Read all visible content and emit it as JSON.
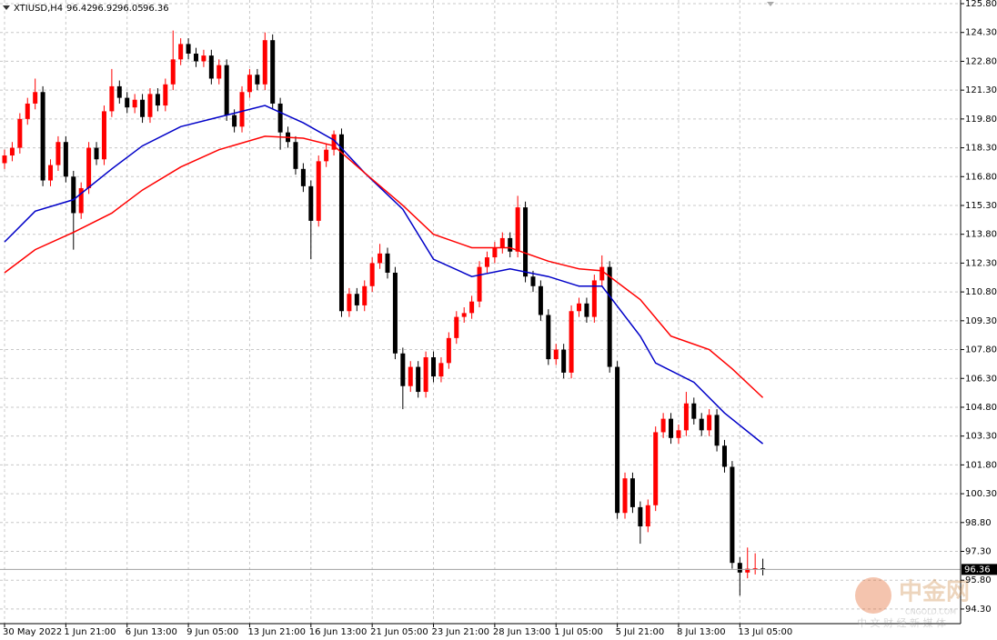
{
  "chart_data": {
    "type": "candlestick",
    "symbol": "XTIUSD,H4",
    "up_color": "#ff0000",
    "down_color": "#000000",
    "grid": true,
    "ylim": [
      93.54,
      125.99
    ],
    "yticks": [
      {
        "value": 125.8,
        "label": "125.80"
      },
      {
        "value": 124.3,
        "label": "124.30"
      },
      {
        "value": 122.8,
        "label": "122.80"
      },
      {
        "value": 121.3,
        "label": "121.30"
      },
      {
        "value": 119.8,
        "label": "119.80"
      },
      {
        "value": 118.3,
        "label": "118.30"
      },
      {
        "value": 116.8,
        "label": "116.80"
      },
      {
        "value": 115.3,
        "label": "115.30"
      },
      {
        "value": 113.8,
        "label": "113.80"
      },
      {
        "value": 112.3,
        "label": "112.30"
      },
      {
        "value": 110.8,
        "label": "110.80"
      },
      {
        "value": 109.3,
        "label": "109.30"
      },
      {
        "value": 107.8,
        "label": "107.80"
      },
      {
        "value": 106.3,
        "label": "106.30"
      },
      {
        "value": 104.8,
        "label": "104.80"
      },
      {
        "value": 103.3,
        "label": "103.30"
      },
      {
        "value": 101.8,
        "label": "101.80"
      },
      {
        "value": 100.3,
        "label": "100.30"
      },
      {
        "value": 98.8,
        "label": "98.80"
      },
      {
        "value": 97.3,
        "label": "97.30"
      },
      {
        "value": 95.8,
        "label": "95.80"
      },
      {
        "value": 94.3,
        "label": "94.30"
      }
    ],
    "xticks": [
      {
        "value": 0,
        "label": "30 May 2022"
      },
      {
        "value": 8,
        "label": "1 Jun 21:00"
      },
      {
        "value": 16,
        "label": "6 Jun 13:00"
      },
      {
        "value": 24,
        "label": "9 Jun 05:00"
      },
      {
        "value": 32,
        "label": "13 Jun 21:00"
      },
      {
        "value": 40,
        "label": "16 Jun 13:00"
      },
      {
        "value": 48,
        "label": "21 Jun 05:00"
      },
      {
        "value": 56,
        "label": "23 Jun 21:00"
      },
      {
        "value": 64,
        "label": "28 Jun 13:00"
      },
      {
        "value": 72,
        "label": "1 Jul 05:00"
      },
      {
        "value": 80,
        "label": "5 Jul 21:00"
      },
      {
        "value": 88,
        "label": "8 Jul 13:00"
      },
      {
        "value": 96,
        "label": "13 Jul 05:00"
      }
    ],
    "candles": [
      [
        117.5,
        118.2,
        117.2,
        117.9
      ],
      [
        117.9,
        118.6,
        117.6,
        118.3
      ],
      [
        118.3,
        120.1,
        118.0,
        119.8
      ],
      [
        119.8,
        120.9,
        119.5,
        120.6
      ],
      [
        120.6,
        121.9,
        120.3,
        121.2
      ],
      [
        121.2,
        121.5,
        116.3,
        116.6
      ],
      [
        116.6,
        117.7,
        116.3,
        117.4
      ],
      [
        117.4,
        118.9,
        117.1,
        118.6
      ],
      [
        118.6,
        118.9,
        116.5,
        116.8
      ],
      [
        116.8,
        117.1,
        113.0,
        114.9
      ],
      [
        114.9,
        116.5,
        114.6,
        116.2
      ],
      [
        116.2,
        118.6,
        115.9,
        118.3
      ],
      [
        118.3,
        118.6,
        117.4,
        117.7
      ],
      [
        117.7,
        120.5,
        117.4,
        120.2
      ],
      [
        120.2,
        122.4,
        119.9,
        121.5
      ],
      [
        121.5,
        121.8,
        120.6,
        120.9
      ],
      [
        120.9,
        121.2,
        120.1,
        120.4
      ],
      [
        120.4,
        121.1,
        120.1,
        120.8
      ],
      [
        120.8,
        121.1,
        119.6,
        119.9
      ],
      [
        119.9,
        121.4,
        119.6,
        121.1
      ],
      [
        121.1,
        121.4,
        120.2,
        120.5
      ],
      [
        120.5,
        121.9,
        120.2,
        121.6
      ],
      [
        121.6,
        124.4,
        121.3,
        122.9
      ],
      [
        122.9,
        124.0,
        122.6,
        123.7
      ],
      [
        123.7,
        124.0,
        122.9,
        123.2
      ],
      [
        123.2,
        123.5,
        122.5,
        122.8
      ],
      [
        122.8,
        123.4,
        122.5,
        123.1
      ],
      [
        123.1,
        123.4,
        121.6,
        121.9
      ],
      [
        121.9,
        122.9,
        121.6,
        122.6
      ],
      [
        122.6,
        122.9,
        119.7,
        120.0
      ],
      [
        120.0,
        120.3,
        119.1,
        119.4
      ],
      [
        119.4,
        121.5,
        119.1,
        121.2
      ],
      [
        121.2,
        122.4,
        120.9,
        122.1
      ],
      [
        122.1,
        122.4,
        121.3,
        121.6
      ],
      [
        121.6,
        124.3,
        121.3,
        123.9
      ],
      [
        123.9,
        124.2,
        120.3,
        120.6
      ],
      [
        120.6,
        120.9,
        118.2,
        119.1
      ],
      [
        119.1,
        119.4,
        118.3,
        118.6
      ],
      [
        118.6,
        118.9,
        116.9,
        117.2
      ],
      [
        117.2,
        117.5,
        116.0,
        116.3
      ],
      [
        116.3,
        116.6,
        112.5,
        114.5
      ],
      [
        114.5,
        117.9,
        114.2,
        117.6
      ],
      [
        117.6,
        118.5,
        117.3,
        118.2
      ],
      [
        118.2,
        119.2,
        117.9,
        119.0
      ],
      [
        119.0,
        119.3,
        109.5,
        109.8
      ],
      [
        109.8,
        111.0,
        109.5,
        110.7
      ],
      [
        110.7,
        111.0,
        109.8,
        110.1
      ],
      [
        110.1,
        111.4,
        109.8,
        111.1
      ],
      [
        111.1,
        112.6,
        110.8,
        112.3
      ],
      [
        112.3,
        113.3,
        112.0,
        112.8
      ],
      [
        112.8,
        113.1,
        111.5,
        111.8
      ],
      [
        111.8,
        112.1,
        107.3,
        107.6
      ],
      [
        107.6,
        107.9,
        104.7,
        105.9
      ],
      [
        105.9,
        107.2,
        105.6,
        106.9
      ],
      [
        106.9,
        107.2,
        105.3,
        105.6
      ],
      [
        105.6,
        107.7,
        105.3,
        107.4
      ],
      [
        107.4,
        107.7,
        106.1,
        106.4
      ],
      [
        106.4,
        107.4,
        106.1,
        107.1
      ],
      [
        107.1,
        108.7,
        106.8,
        108.4
      ],
      [
        108.4,
        109.8,
        108.1,
        109.5
      ],
      [
        109.5,
        110.0,
        109.2,
        109.7
      ],
      [
        109.7,
        110.6,
        109.4,
        110.3
      ],
      [
        110.3,
        112.4,
        110.0,
        112.1
      ],
      [
        112.1,
        112.9,
        111.8,
        112.6
      ],
      [
        112.6,
        113.4,
        112.3,
        113.1
      ],
      [
        113.1,
        113.9,
        112.8,
        113.6
      ],
      [
        113.6,
        113.9,
        112.6,
        112.9
      ],
      [
        112.9,
        115.8,
        112.6,
        115.2
      ],
      [
        115.2,
        115.5,
        111.3,
        111.6
      ],
      [
        111.6,
        111.9,
        110.8,
        111.1
      ],
      [
        111.1,
        111.4,
        109.3,
        109.6
      ],
      [
        109.6,
        109.9,
        107.0,
        107.3
      ],
      [
        107.3,
        108.1,
        107.0,
        107.8
      ],
      [
        107.8,
        108.1,
        106.3,
        106.6
      ],
      [
        106.6,
        110.1,
        106.3,
        109.8
      ],
      [
        109.8,
        110.5,
        109.5,
        110.2
      ],
      [
        110.2,
        110.5,
        109.2,
        109.5
      ],
      [
        109.5,
        111.7,
        109.2,
        111.4
      ],
      [
        111.4,
        112.7,
        111.1,
        112.1
      ],
      [
        112.1,
        112.4,
        106.6,
        106.9
      ],
      [
        106.9,
        107.2,
        99.0,
        99.3
      ],
      [
        99.3,
        101.4,
        99.0,
        101.1
      ],
      [
        101.1,
        101.4,
        99.3,
        99.6
      ],
      [
        99.6,
        99.9,
        97.7,
        98.6
      ],
      [
        98.6,
        100.0,
        98.3,
        99.7
      ],
      [
        99.7,
        103.8,
        99.4,
        103.5
      ],
      [
        103.5,
        104.5,
        103.2,
        104.2
      ],
      [
        104.2,
        104.5,
        102.9,
        103.2
      ],
      [
        103.2,
        103.9,
        102.9,
        103.6
      ],
      [
        103.6,
        105.6,
        103.3,
        105.0
      ],
      [
        105.0,
        105.3,
        103.9,
        104.2
      ],
      [
        104.2,
        104.5,
        103.3,
        103.6
      ],
      [
        103.6,
        104.7,
        103.3,
        104.4
      ],
      [
        104.4,
        104.7,
        102.5,
        102.8
      ],
      [
        102.8,
        103.1,
        101.4,
        101.7
      ],
      [
        101.7,
        102.0,
        96.4,
        96.7
      ],
      [
        96.7,
        97.0,
        95.0,
        96.2
      ],
      [
        96.2,
        97.5,
        95.9,
        96.4
      ],
      [
        96.4,
        97.2,
        96.1,
        96.42
      ],
      [
        96.42,
        96.92,
        96.05,
        96.36
      ]
    ],
    "moving_averages": [
      {
        "color": "#0000c8",
        "x": [
          0,
          4,
          9,
          14,
          18,
          23,
          28,
          34,
          39,
          43,
          47,
          52,
          56,
          61,
          66,
          71,
          75,
          78,
          83,
          85,
          90,
          94,
          99
        ],
        "values": [
          113.4,
          115.0,
          115.6,
          117.2,
          118.4,
          119.4,
          119.9,
          120.5,
          119.6,
          118.7,
          117.0,
          115.1,
          112.5,
          111.6,
          112.0,
          111.6,
          111.1,
          111.1,
          108.5,
          107.1,
          106.1,
          104.5,
          102.9
        ]
      },
      {
        "color": "#ff0000",
        "x": [
          0,
          4,
          9,
          14,
          18,
          23,
          28,
          34,
          39,
          43,
          47,
          52,
          56,
          61,
          66,
          71,
          75,
          78,
          83,
          87,
          92,
          95,
          99
        ],
        "values": [
          111.8,
          113.0,
          113.9,
          114.9,
          116.1,
          117.3,
          118.2,
          118.9,
          118.8,
          118.4,
          117.0,
          115.3,
          113.8,
          113.1,
          113.1,
          112.4,
          112.0,
          111.9,
          110.4,
          108.5,
          107.8,
          106.8,
          105.3
        ]
      }
    ],
    "watermark": {
      "brand": "中金网",
      "site": "CNGOLD.COM",
      "tagline": "中 文 财 经 新 媒 体"
    }
  }
}
